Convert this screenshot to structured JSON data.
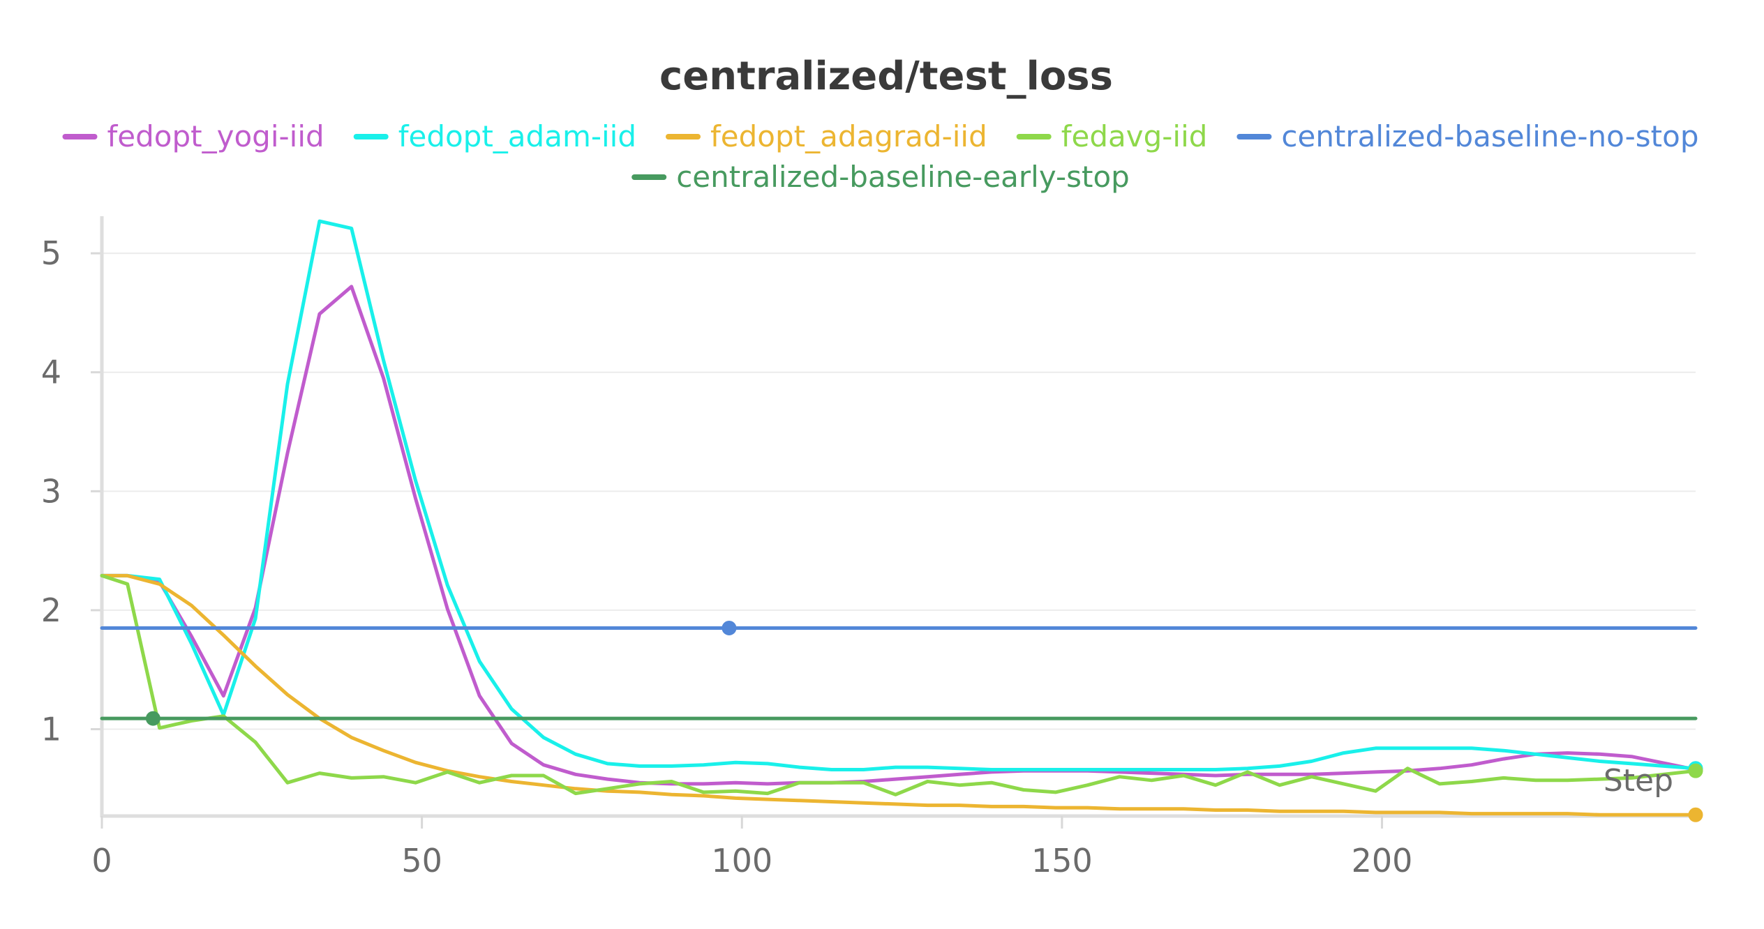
{
  "chart_data": {
    "type": "line",
    "title": "centralized/test_loss",
    "xlabel": "Step",
    "ylabel": "",
    "xlim": [
      0,
      249
    ],
    "ylim": [
      0.27,
      5.3
    ],
    "x_ticks": [
      0,
      50,
      100,
      150,
      200
    ],
    "y_ticks": [
      1,
      2,
      3,
      4,
      5
    ],
    "grid": "horizontal",
    "legend_position": "top",
    "series": [
      {
        "name": "fedopt_yogi-iid",
        "color": "#c05ccd",
        "x": [
          0,
          4,
          9,
          14,
          19,
          24,
          29,
          34,
          39,
          44,
          49,
          54,
          59,
          64,
          69,
          74,
          79,
          84,
          89,
          94,
          99,
          104,
          109,
          114,
          119,
          124,
          129,
          134,
          139,
          144,
          149,
          154,
          159,
          164,
          169,
          174,
          179,
          184,
          189,
          194,
          199,
          204,
          209,
          214,
          219,
          224,
          229,
          234,
          239,
          249
        ],
        "y": [
          2.29,
          2.29,
          2.24,
          1.78,
          1.28,
          2.02,
          3.32,
          4.49,
          4.72,
          3.95,
          2.94,
          2.01,
          1.28,
          0.88,
          0.7,
          0.62,
          0.58,
          0.55,
          0.54,
          0.54,
          0.55,
          0.54,
          0.55,
          0.55,
          0.56,
          0.58,
          0.6,
          0.62,
          0.64,
          0.65,
          0.65,
          0.65,
          0.64,
          0.63,
          0.62,
          0.61,
          0.62,
          0.62,
          0.62,
          0.63,
          0.64,
          0.65,
          0.67,
          0.7,
          0.75,
          0.79,
          0.8,
          0.79,
          0.77,
          0.66
        ]
      },
      {
        "name": "fedopt_adam-iid",
        "color": "#19f0ea",
        "x": [
          0,
          4,
          9,
          14,
          19,
          24,
          29,
          34,
          39,
          44,
          49,
          54,
          59,
          64,
          69,
          74,
          79,
          84,
          89,
          94,
          99,
          104,
          109,
          114,
          119,
          124,
          129,
          134,
          139,
          144,
          149,
          154,
          159,
          164,
          169,
          174,
          179,
          184,
          189,
          194,
          199,
          204,
          209,
          214,
          219,
          224,
          229,
          234,
          239,
          249
        ],
        "y": [
          2.29,
          2.29,
          2.26,
          1.72,
          1.12,
          1.93,
          3.9,
          5.27,
          5.21,
          4.1,
          3.09,
          2.21,
          1.57,
          1.17,
          0.93,
          0.79,
          0.71,
          0.69,
          0.69,
          0.7,
          0.72,
          0.71,
          0.68,
          0.66,
          0.66,
          0.68,
          0.68,
          0.67,
          0.66,
          0.66,
          0.66,
          0.66,
          0.66,
          0.66,
          0.66,
          0.66,
          0.67,
          0.69,
          0.73,
          0.8,
          0.84,
          0.84,
          0.84,
          0.84,
          0.82,
          0.79,
          0.76,
          0.73,
          0.71,
          0.67
        ]
      },
      {
        "name": "fedopt_adagrad-iid",
        "color": "#ecb531",
        "x": [
          0,
          4,
          9,
          14,
          19,
          24,
          29,
          34,
          39,
          44,
          49,
          54,
          59,
          64,
          69,
          74,
          79,
          84,
          89,
          94,
          99,
          104,
          109,
          114,
          119,
          124,
          129,
          134,
          139,
          144,
          149,
          154,
          159,
          164,
          169,
          174,
          179,
          184,
          189,
          194,
          199,
          204,
          209,
          214,
          219,
          224,
          229,
          234,
          239,
          249
        ],
        "y": [
          2.29,
          2.29,
          2.22,
          2.04,
          1.79,
          1.53,
          1.29,
          1.09,
          0.93,
          0.82,
          0.72,
          0.65,
          0.6,
          0.56,
          0.53,
          0.5,
          0.48,
          0.47,
          0.45,
          0.44,
          0.42,
          0.41,
          0.4,
          0.39,
          0.38,
          0.37,
          0.36,
          0.36,
          0.35,
          0.35,
          0.34,
          0.34,
          0.33,
          0.33,
          0.33,
          0.32,
          0.32,
          0.31,
          0.31,
          0.31,
          0.3,
          0.3,
          0.3,
          0.29,
          0.29,
          0.29,
          0.29,
          0.28,
          0.28,
          0.28
        ]
      },
      {
        "name": "fedavg-iid",
        "color": "#8ed84a",
        "x": [
          0,
          4,
          9,
          14,
          19,
          24,
          29,
          34,
          39,
          44,
          49,
          54,
          59,
          64,
          69,
          74,
          79,
          84,
          89,
          94,
          99,
          104,
          109,
          114,
          119,
          124,
          129,
          134,
          139,
          144,
          149,
          154,
          159,
          164,
          169,
          174,
          179,
          184,
          189,
          194,
          199,
          204,
          209,
          214,
          219,
          224,
          229,
          234,
          239,
          249
        ],
        "y": [
          2.29,
          2.22,
          1.01,
          1.07,
          1.11,
          0.89,
          0.55,
          0.63,
          0.59,
          0.6,
          0.55,
          0.64,
          0.55,
          0.61,
          0.61,
          0.46,
          0.5,
          0.54,
          0.56,
          0.47,
          0.48,
          0.46,
          0.55,
          0.55,
          0.55,
          0.45,
          0.56,
          0.53,
          0.55,
          0.49,
          0.47,
          0.53,
          0.6,
          0.57,
          0.61,
          0.53,
          0.64,
          0.53,
          0.6,
          0.54,
          0.48,
          0.67,
          0.54,
          0.56,
          0.59,
          0.57,
          0.57,
          0.58,
          0.59,
          0.65
        ]
      },
      {
        "name": "centralized-baseline-no-stop",
        "color": "#5287d8",
        "x": [
          0,
          249
        ],
        "y": [
          1.85,
          1.85
        ],
        "marker_x": 98
      },
      {
        "name": "centralized-baseline-early-stop",
        "color": "#479a5f",
        "x": [
          0,
          249
        ],
        "y": [
          1.09,
          1.09
        ],
        "marker_x": 8
      }
    ]
  }
}
